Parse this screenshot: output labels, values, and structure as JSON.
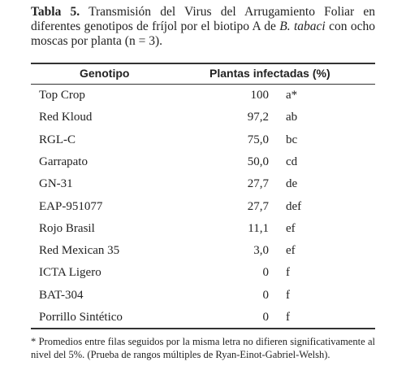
{
  "caption": {
    "label": "Tabla 5.",
    "text_before": "Transmisión del Virus del Arrugamiento Foliar en diferentes genotipos de fríjol por el biotipo A de",
    "italic": "B. tabaci",
    "text_after": "con ocho moscas por planta (n = 3)."
  },
  "table": {
    "headers": [
      "Genotipo",
      "Plantas infectadas (%)"
    ],
    "rows": [
      [
        "Top Crop",
        "100",
        "a*"
      ],
      [
        "Red Kloud",
        "97,2",
        "ab"
      ],
      [
        "RGL-C",
        "75,0",
        "bc"
      ],
      [
        "Garrapato",
        "50,0",
        "cd"
      ],
      [
        "GN-31",
        "27,7",
        "de"
      ],
      [
        "EAP-951077",
        "27,7",
        "def"
      ],
      [
        "Rojo Brasil",
        "11,1",
        "ef"
      ],
      [
        "Red Mexican 35",
        "3,0",
        "ef"
      ],
      [
        "ICTA Ligero",
        "0",
        "f"
      ],
      [
        "BAT-304",
        "0",
        "f"
      ],
      [
        "Porrillo Sintético",
        "0",
        "f"
      ]
    ]
  },
  "footnote": "* Promedios entre filas seguidos por la misma letra no difieren significativamente al nivel del 5%. (Prueba de rangos múltiples de Ryan-Einot-Gabriel-Welsh)."
}
